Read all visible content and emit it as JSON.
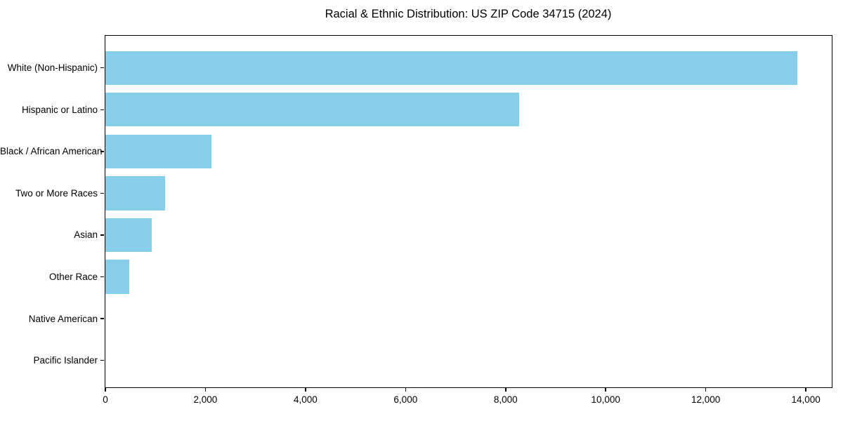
{
  "figure": {
    "title": "Racial & Ethnic Distribution: US ZIP Code 34715 (2024)"
  },
  "chart_data": {
    "type": "bar",
    "orientation": "horizontal",
    "title": "Racial & Ethnic Distribution: US ZIP Code 34715 (2024)",
    "categories": [
      "White (Non-Hispanic)",
      "Hispanic or Latino",
      "Black / African American",
      "Two or More Races",
      "Asian",
      "Other Race",
      "Native American",
      "Pacific Islander"
    ],
    "values": [
      13835,
      8270,
      2120,
      1200,
      930,
      485,
      0,
      0
    ],
    "xlabel": "",
    "ylabel": "",
    "xlim": [
      0,
      14511
    ],
    "xtick_values": [
      0,
      2000,
      4000,
      6000,
      8000,
      10000,
      12000,
      14000
    ],
    "xtick_labels": [
      "0",
      "2,000",
      "4,000",
      "6,000",
      "8,000",
      "10,000",
      "12,000",
      "14,000"
    ],
    "bar_color": "#87CEEB",
    "axis_color": "#000000",
    "text_color": "#000000",
    "background": "#FFFFFF",
    "grid": false,
    "legend": null
  }
}
